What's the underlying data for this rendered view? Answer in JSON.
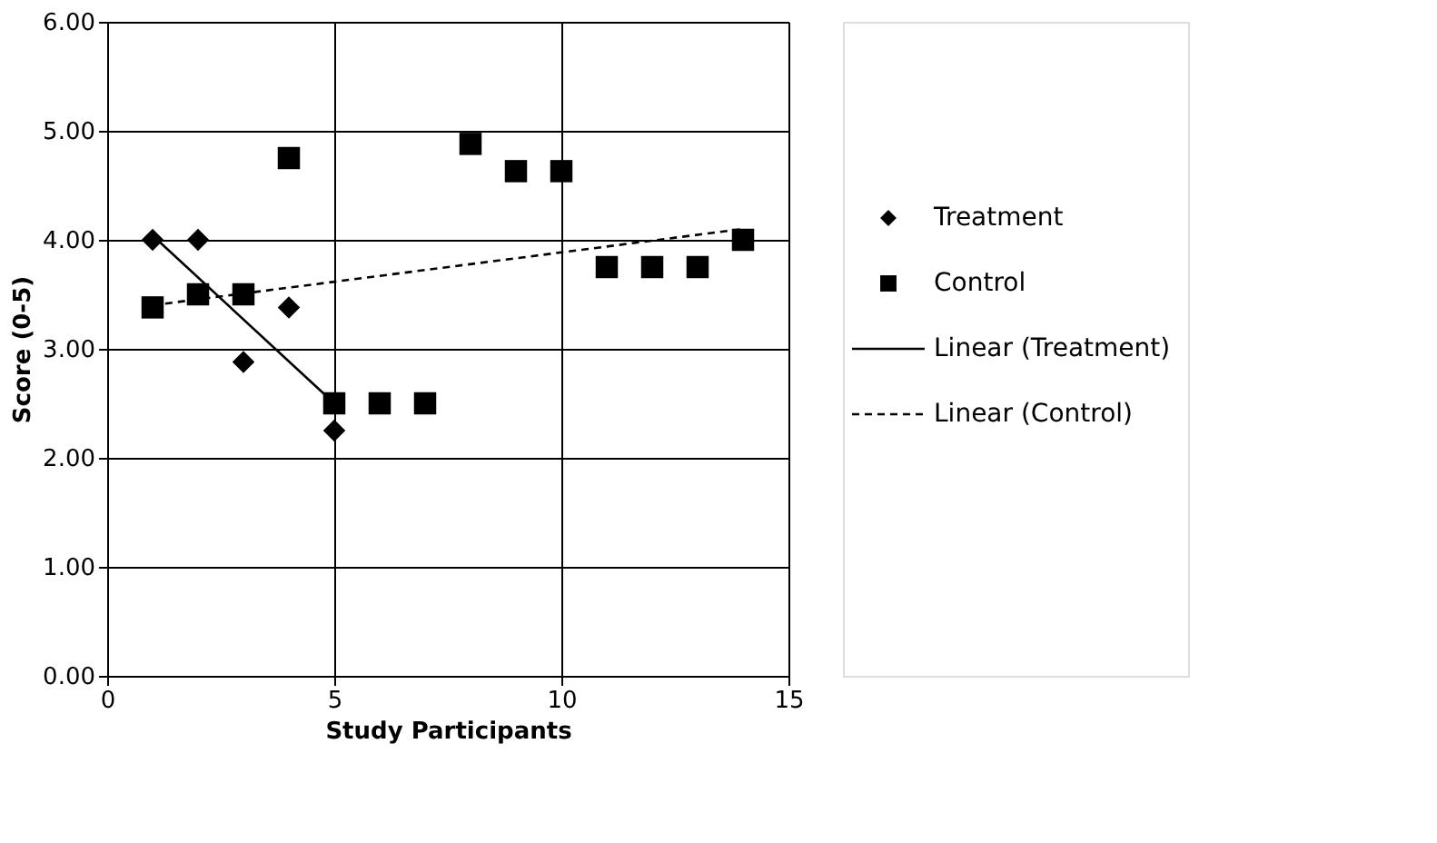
{
  "chart_data": {
    "type": "scatter",
    "xlabel": "Study Participants",
    "ylabel": "Score (0-5)",
    "xlim": [
      0,
      15
    ],
    "xticks": [
      0,
      5,
      10,
      15
    ],
    "ylim": [
      0,
      6
    ],
    "yticks": [
      {
        "value": 0,
        "label": "0.00"
      },
      {
        "value": 1,
        "label": "1.00"
      },
      {
        "value": 2,
        "label": "2.00"
      },
      {
        "value": 3,
        "label": "3.00"
      },
      {
        "value": 4,
        "label": "4.00"
      },
      {
        "value": 5,
        "label": "5.00"
      },
      {
        "value": 6,
        "label": "6.00"
      }
    ],
    "grid": true,
    "legend": "right",
    "series": [
      {
        "name": "Treatment",
        "marker": "diamond",
        "color": "#000000",
        "x": [
          1,
          2,
          3,
          4,
          5
        ],
        "values": [
          4.0,
          4.0,
          2.88,
          3.38,
          2.25
        ]
      },
      {
        "name": "Control",
        "marker": "square",
        "color": "#000000",
        "x": [
          1,
          2,
          3,
          4,
          5,
          6,
          7,
          8,
          9,
          10,
          11,
          12,
          13,
          14
        ],
        "values": [
          3.38,
          3.5,
          3.5,
          4.75,
          2.5,
          2.5,
          2.5,
          4.88,
          4.63,
          4.63,
          3.75,
          3.75,
          3.75,
          4.0
        ]
      },
      {
        "name": "Linear (Treatment)",
        "type": "line",
        "line_style": "solid",
        "color": "#000000",
        "x": [
          1,
          5
        ],
        "values": [
          4.04,
          2.5
        ]
      },
      {
        "name": "Linear (Control)",
        "type": "line",
        "line_style": "dashed",
        "color": "#000000",
        "x": [
          1,
          14
        ],
        "values": [
          3.4,
          4.1
        ]
      }
    ]
  }
}
